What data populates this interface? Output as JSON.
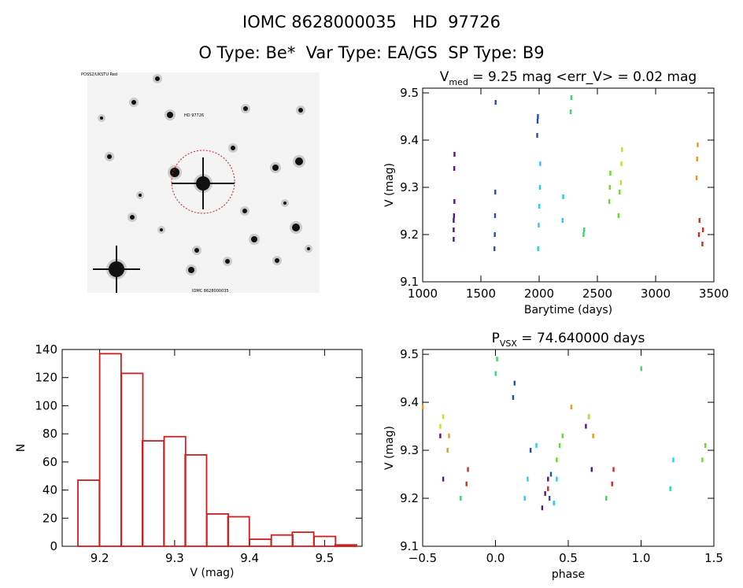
{
  "header": {
    "line1": "IOMC 8628000035   HD  97726",
    "line2": "O Type: Be*  Var Type: EA/GS  SP Type: B9"
  },
  "image_panel": {
    "corner_tl": "POSS2/UKSTU Red",
    "label_top": "HD 97726",
    "label_bottom": "IOMC 8628000035"
  },
  "chart_data": [
    {
      "type": "scatter",
      "title_main": "V",
      "title_sub": "med",
      "title_rest": " = 9.25 mag <err_V> = 0.02 mag",
      "xlabel": "Barytime (days)",
      "ylabel": "V (mag)",
      "xlim": [
        1000,
        3500
      ],
      "ylim": [
        9.51,
        9.1
      ],
      "xticks": [
        1000,
        1500,
        2000,
        2500,
        3000,
        3500
      ],
      "yticks": [
        9.1,
        9.2,
        9.3,
        9.4,
        9.5
      ],
      "ytick_labels": [
        "9.1",
        "9.2",
        "9.3",
        "9.4",
        "9.5"
      ],
      "series": [
        {
          "color": "#55128b",
          "points": [
            [
              1265,
              9.19
            ],
            [
              1265,
              9.21
            ],
            [
              1268,
              9.24
            ],
            [
              1271,
              9.27
            ],
            [
              1270,
              9.34
            ],
            [
              1272,
              9.37
            ],
            [
              1265,
              9.23
            ]
          ]
        },
        {
          "color": "#1f4fb3",
          "points": [
            [
              1615,
              9.17
            ],
            [
              1618,
              9.2
            ],
            [
              1620,
              9.24
            ],
            [
              1622,
              9.29
            ],
            [
              1625,
              9.48
            ],
            [
              1982,
              9.41
            ],
            [
              1985,
              9.44
            ],
            [
              1988,
              9.45
            ]
          ]
        },
        {
          "color": "#20d0e8",
          "points": [
            [
              1990,
              9.17
            ],
            [
              1995,
              9.22
            ],
            [
              2000,
              9.26
            ],
            [
              2005,
              9.3
            ],
            [
              2008,
              9.35
            ],
            [
              2200,
              9.23
            ],
            [
              2205,
              9.28
            ]
          ]
        },
        {
          "color": "#3ad66a",
          "points": [
            [
              2270,
              9.46
            ],
            [
              2275,
              9.49
            ],
            [
              2380,
              9.2
            ],
            [
              2385,
              9.21
            ]
          ]
        },
        {
          "color": "#5ee023",
          "points": [
            [
              2600,
              9.27
            ],
            [
              2605,
              9.3
            ],
            [
              2610,
              9.33
            ],
            [
              2680,
              9.24
            ],
            [
              2690,
              9.29
            ]
          ]
        },
        {
          "color": "#c5e023",
          "points": [
            [
              2700,
              9.31
            ],
            [
              2705,
              9.35
            ],
            [
              2710,
              9.38
            ]
          ]
        },
        {
          "color": "#e89a12",
          "points": [
            [
              3350,
              9.32
            ],
            [
              3355,
              9.36
            ],
            [
              3360,
              9.39
            ]
          ]
        },
        {
          "color": "#d42a1a",
          "points": [
            [
              3370,
              9.2
            ],
            [
              3375,
              9.23
            ],
            [
              3400,
              9.18
            ],
            [
              3405,
              9.21
            ]
          ]
        }
      ]
    },
    {
      "type": "bar",
      "xlabel": "V (mag)",
      "ylabel": "N",
      "xlim": [
        9.15,
        9.55
      ],
      "ylim": [
        0,
        140
      ],
      "xticks": [
        9.2,
        9.3,
        9.4,
        9.5
      ],
      "yticks": [
        0,
        20,
        40,
        60,
        80,
        100,
        120,
        140
      ],
      "bin_width": 0.0286,
      "bin_starts": [
        9.171,
        9.2,
        9.229,
        9.257,
        9.286,
        9.314,
        9.343,
        9.371,
        9.4,
        9.429,
        9.457,
        9.486,
        9.514
      ],
      "values": [
        47,
        137,
        123,
        75,
        78,
        65,
        23,
        21,
        5,
        8,
        10,
        7,
        1
      ],
      "color": "#cc1f1f"
    },
    {
      "type": "scatter",
      "title_main": "P",
      "title_sub": "VSX",
      "title_rest": " = 74.640000 days",
      "xlabel": "phase",
      "ylabel": "V (mag)",
      "xlim": [
        -0.5,
        1.5
      ],
      "ylim": [
        9.51,
        9.1
      ],
      "xticks": [
        -0.5,
        0.0,
        0.5,
        1.0,
        1.5
      ],
      "xtick_labels": [
        "−0.5",
        "0.0",
        "0.5",
        "1.0",
        "1.5"
      ],
      "yticks": [
        9.1,
        9.2,
        9.3,
        9.4,
        9.5
      ],
      "ytick_labels": [
        "9.1",
        "9.2",
        "9.3",
        "9.4",
        "9.5"
      ],
      "series": [
        {
          "color": "#55128b",
          "points": [
            [
              0.32,
              9.18
            ],
            [
              0.34,
              9.21
            ],
            [
              0.36,
              9.24
            ],
            [
              -0.38,
              9.33
            ],
            [
              -0.36,
              9.24
            ],
            [
              0.62,
              9.35
            ],
            [
              0.64,
              9.37
            ],
            [
              0.66,
              9.26
            ]
          ]
        },
        {
          "color": "#1f4fb3",
          "points": [
            [
              0.12,
              9.41
            ],
            [
              0.13,
              9.44
            ],
            [
              0.37,
              9.2
            ],
            [
              0.38,
              9.25
            ],
            [
              0.24,
              9.3
            ]
          ]
        },
        {
          "color": "#20d0e8",
          "points": [
            [
              0.2,
              9.2
            ],
            [
              0.22,
              9.24
            ],
            [
              0.28,
              9.31
            ],
            [
              0.4,
              9.19
            ],
            [
              0.42,
              9.24
            ],
            [
              1.2,
              9.22
            ],
            [
              1.22,
              9.28
            ]
          ]
        },
        {
          "color": "#3ad66a",
          "points": [
            [
              0.0,
              9.46
            ],
            [
              0.01,
              9.49
            ],
            [
              -0.24,
              9.2
            ],
            [
              0.76,
              9.2
            ],
            [
              1.0,
              9.47
            ]
          ]
        },
        {
          "color": "#5ee023",
          "points": [
            [
              0.42,
              9.28
            ],
            [
              0.44,
              9.31
            ],
            [
              0.46,
              9.33
            ],
            [
              1.42,
              9.28
            ],
            [
              1.44,
              9.31
            ]
          ]
        },
        {
          "color": "#c5e023",
          "points": [
            [
              -0.36,
              9.37
            ],
            [
              -0.38,
              9.35
            ],
            [
              0.64,
              9.37
            ]
          ]
        },
        {
          "color": "#e89a12",
          "points": [
            [
              -0.33,
              9.3
            ],
            [
              -0.32,
              9.33
            ],
            [
              -0.5,
              9.39
            ],
            [
              0.67,
              9.33
            ],
            [
              0.52,
              9.39
            ]
          ]
        },
        {
          "color": "#d42a1a",
          "points": [
            [
              -0.2,
              9.23
            ],
            [
              -0.19,
              9.26
            ],
            [
              0.8,
              9.23
            ],
            [
              0.81,
              9.26
            ],
            [
              0.36,
              9.22
            ]
          ]
        }
      ]
    }
  ]
}
